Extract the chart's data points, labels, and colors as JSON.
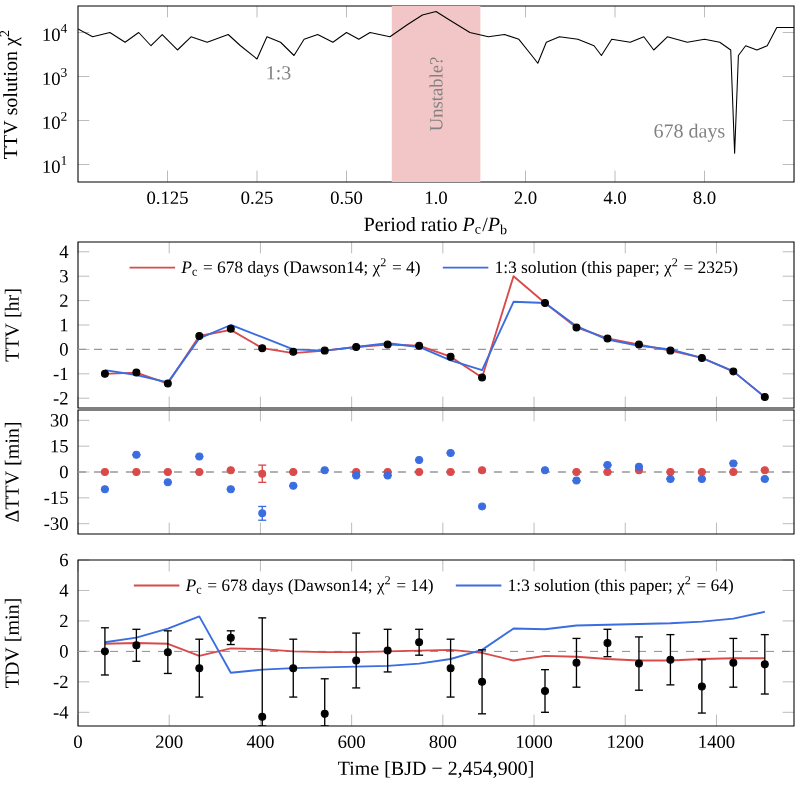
{
  "chart_data": [
    {
      "type": "line",
      "xlabel": "Period ratio *P*$_{c}$/*P*$_{b}$",
      "ylabel": "TTV solution χ$^{2}$",
      "log": "xy",
      "xlim": [
        0.0625,
        16
      ],
      "ylim": [
        4,
        40000
      ],
      "xticks": [
        0.125,
        0.25,
        {
          "value": 0.5,
          "label": "0.50"
        },
        {
          "value": 1,
          "label": "1.0"
        },
        {
          "value": 2,
          "label": "2.0"
        },
        {
          "value": 4,
          "label": "4.0"
        },
        {
          "value": 8,
          "label": "8.0"
        }
      ],
      "yticks": [
        {
          "value": 10,
          "label": "10$^{1}$"
        },
        {
          "value": 100,
          "label": "10$^{2}$"
        },
        {
          "value": 1000,
          "label": "10$^{3}$"
        },
        {
          "value": 10000,
          "label": "10$^{4}$"
        }
      ],
      "color": "#000000",
      "x": [
        0.0625,
        0.07,
        0.08,
        0.09,
        0.1,
        0.11,
        0.12,
        0.135,
        0.15,
        0.17,
        0.2,
        0.22,
        0.25,
        0.27,
        0.3,
        0.333,
        0.36,
        0.4,
        0.45,
        0.5,
        0.55,
        0.6,
        0.7,
        0.8,
        0.9,
        1.0,
        1.1,
        1.3,
        1.5,
        1.7,
        1.9,
        2.1,
        2.2,
        2.35,
        2.6,
        3.0,
        3.4,
        3.6,
        3.9,
        4.5,
        5.0,
        5.4,
        6,
        7,
        8,
        9,
        9.8,
        10.1,
        10.4,
        11,
        12,
        13,
        14,
        16
      ],
      "values": [
        12000,
        8000,
        10000,
        6000,
        10000,
        5000,
        9000,
        4000,
        8000,
        6000,
        9000,
        5000,
        2500,
        8000,
        6000,
        3000,
        7000,
        9000,
        6000,
        10000,
        7000,
        10000,
        8000,
        15000,
        25000,
        30000,
        20000,
        10000,
        8000,
        9000,
        7000,
        3000,
        2000,
        6000,
        8000,
        7000,
        5000,
        3000,
        7000,
        6000,
        8000,
        4000,
        8000,
        6000,
        7000,
        6000,
        4000,
        18,
        3000,
        5000,
        4000,
        5000,
        13000,
        13000
      ],
      "bands": [
        {
          "axis": "x",
          "from": 0.71,
          "to": 1.41,
          "label": "Unstable?",
          "color": "#f2c6c6"
        }
      ],
      "annotations": [
        "1:3",
        {
          "text": "678 days",
          "x": 10.1,
          "y": 20
        }
      ]
    },
    {
      "type": "line",
      "ylabel": "TTV [hr]",
      "xlim": [
        0,
        1570
      ],
      "ylim": [
        -2.4,
        4.4
      ],
      "xticks": [
        0,
        200,
        400,
        600,
        800,
        1000,
        1200,
        1400
      ],
      "yticks": [
        -2,
        -1,
        0,
        1,
        2,
        3,
        4
      ],
      "tick_labels": "y",
      "legend": "top",
      "ref_lines": [
        {
          "axis": "y",
          "value": 0,
          "color": "#999999",
          "line_style": "dashed"
        }
      ],
      "series": [
        {
          "name": "*P*$_{c}$ = 678 days (Dawson14; χ$^{2}$ = 4)",
          "color": "#d94a4a",
          "x": [
            59,
            128,
            197,
            266,
            335,
            404,
            472,
            541,
            610,
            679,
            748,
            817,
            886,
            955,
            1024,
            1093,
            1161,
            1230,
            1299,
            1368,
            1437,
            1506
          ],
          "values": [
            -1.0,
            -0.95,
            -1.4,
            0.55,
            0.8,
            0.05,
            -0.15,
            -0.05,
            0.1,
            0.2,
            0.15,
            -0.3,
            -1.15,
            3.0,
            1.9,
            0.9,
            0.45,
            0.2,
            -0.05,
            -0.35,
            -0.9,
            -1.95
          ]
        },
        {
          "name": "1:3 solution (this paper; χ$^{2}$ = 2325)",
          "color": "#3a6de0",
          "x": [
            59,
            128,
            197,
            266,
            335,
            404,
            472,
            541,
            610,
            679,
            748,
            817,
            886,
            955,
            1024,
            1093,
            1161,
            1230,
            1299,
            1368,
            1437,
            1506
          ],
          "values": [
            -0.85,
            -1.05,
            -1.35,
            0.45,
            1.0,
            0.5,
            0.0,
            -0.05,
            0.1,
            0.25,
            0.1,
            -0.45,
            -0.85,
            1.95,
            1.9,
            0.95,
            0.4,
            0.15,
            0.0,
            -0.35,
            -0.9,
            -1.95
          ]
        },
        {
          "type": "scatter",
          "marker": "circle",
          "color": "#000000",
          "x": [
            59,
            128,
            197,
            266,
            335,
            404,
            472,
            541,
            610,
            679,
            748,
            817,
            886,
            1024,
            1093,
            1161,
            1230,
            1299,
            1368,
            1437,
            1506
          ],
          "values": [
            -1.0,
            -0.95,
            -1.4,
            0.55,
            0.85,
            0.05,
            -0.1,
            -0.05,
            0.1,
            0.2,
            0.15,
            -0.3,
            -1.15,
            1.9,
            0.9,
            0.45,
            0.2,
            -0.05,
            -0.35,
            -0.9,
            -1.95
          ]
        }
      ]
    },
    {
      "type": "scatter",
      "marker": "circle",
      "ylabel": "ΔTTV [min]",
      "xlim": [
        0,
        1570
      ],
      "ylim": [
        -36,
        36
      ],
      "xticks": [
        0,
        200,
        400,
        600,
        800,
        1000,
        1200,
        1400
      ],
      "yticks": [
        -30,
        -15,
        0,
        15,
        30
      ],
      "tick_labels": "y",
      "ref_lines": [
        {
          "axis": "y",
          "value": 0,
          "color": "#999999",
          "line_style": "dashed"
        }
      ],
      "series": [
        {
          "color": "#d94a4a",
          "x": [
            59,
            128,
            197,
            266,
            335,
            404,
            472,
            541,
            610,
            679,
            748,
            817,
            886,
            1024,
            1093,
            1161,
            1230,
            1299,
            1368,
            1437,
            1506
          ],
          "values": [
            0,
            0,
            0,
            0,
            1,
            -1,
            0,
            null,
            0,
            0,
            0,
            0,
            1,
            null,
            0,
            0,
            1,
            0,
            0,
            0,
            1
          ],
          "errors": [
            null,
            null,
            null,
            null,
            null,
            5,
            null,
            null,
            null,
            null,
            null,
            null,
            null,
            null,
            null,
            null,
            null,
            null,
            null,
            null,
            null
          ]
        },
        {
          "color": "#3a6de0",
          "x": [
            59,
            128,
            197,
            266,
            335,
            404,
            472,
            541,
            610,
            679,
            748,
            817,
            886,
            1024,
            1093,
            1161,
            1230,
            1299,
            1368,
            1437,
            1506
          ],
          "values": [
            -10,
            10,
            -6,
            9,
            -10,
            -24,
            -8,
            1,
            -2,
            -2,
            7,
            11,
            -20,
            1,
            -5,
            4,
            3,
            -4,
            -4,
            5,
            -4
          ],
          "errors": [
            null,
            null,
            null,
            null,
            null,
            4,
            null,
            null,
            null,
            null,
            null,
            null,
            null,
            null,
            null,
            null,
            null,
            null,
            null,
            null,
            null
          ]
        }
      ]
    },
    {
      "type": "line",
      "xlabel": "Time [BJD − 2,454,900]",
      "ylabel": "TDV [min]",
      "xlim": [
        0,
        1570
      ],
      "ylim": [
        -4.9,
        6
      ],
      "xticks": [
        0,
        200,
        400,
        600,
        800,
        1000,
        1200,
        1400
      ],
      "yticks": [
        -4,
        -2,
        0,
        2,
        4,
        6
      ],
      "legend": "top",
      "ref_lines": [
        {
          "axis": "y",
          "value": 0,
          "color": "#999999",
          "line_style": "dashed"
        }
      ],
      "series": [
        {
          "name": "*P*$_{c}$ = 678 days (Dawson14; χ$^{2}$ = 14)",
          "color": "#d94a4a",
          "x": [
            59,
            128,
            197,
            266,
            335,
            404,
            472,
            541,
            610,
            679,
            748,
            817,
            886,
            955,
            1024,
            1093,
            1161,
            1230,
            1299,
            1368,
            1437,
            1506
          ],
          "values": [
            0.5,
            0.55,
            0.5,
            -0.3,
            0.2,
            0.15,
            0.0,
            -0.05,
            -0.05,
            0.0,
            0.05,
            0.1,
            -0.1,
            -0.6,
            -0.3,
            -0.35,
            -0.5,
            -0.6,
            -0.6,
            -0.5,
            -0.45,
            -0.45
          ]
        },
        {
          "name": "1:3 solution (this paper; χ$^{2}$ = 64)",
          "color": "#3a6de0",
          "x": [
            59,
            128,
            197,
            266,
            335,
            404,
            472,
            541,
            610,
            679,
            748,
            817,
            886,
            955,
            1024,
            1093,
            1161,
            1230,
            1299,
            1368,
            1437,
            1506
          ],
          "values": [
            0.6,
            0.9,
            1.5,
            2.3,
            -1.4,
            -1.2,
            -1.1,
            -1.05,
            -1.0,
            -0.95,
            -0.8,
            -0.5,
            0.1,
            1.5,
            1.45,
            1.7,
            1.75,
            1.8,
            1.85,
            1.95,
            2.15,
            2.6
          ]
        },
        {
          "type": "scatter",
          "marker": "circle",
          "color": "#000000",
          "x": [
            59,
            128,
            197,
            266,
            335,
            404,
            472,
            541,
            610,
            679,
            748,
            817,
            886,
            1024,
            1093,
            1161,
            1230,
            1299,
            1368,
            1437,
            1506
          ],
          "values": [
            0,
            0.4,
            -0.05,
            -1.1,
            0.9,
            -4.3,
            -1.1,
            -4.1,
            -0.6,
            0.05,
            0.6,
            -1.1,
            -2.0,
            -2.6,
            -0.75,
            0.55,
            -0.8,
            -0.55,
            -2.3,
            -0.75,
            -0.85
          ],
          "errors": [
            1.55,
            1.05,
            1.4,
            1.9,
            0.45,
            [
              -4.9,
              2.2
            ],
            1.9,
            [
              -4.9,
              -1.8
            ],
            1.8,
            1.4,
            0.85,
            1.9,
            2.1,
            1.4,
            1.6,
            0.9,
            1.75,
            1.65,
            1.75,
            1.6,
            1.95
          ]
        }
      ]
    }
  ]
}
